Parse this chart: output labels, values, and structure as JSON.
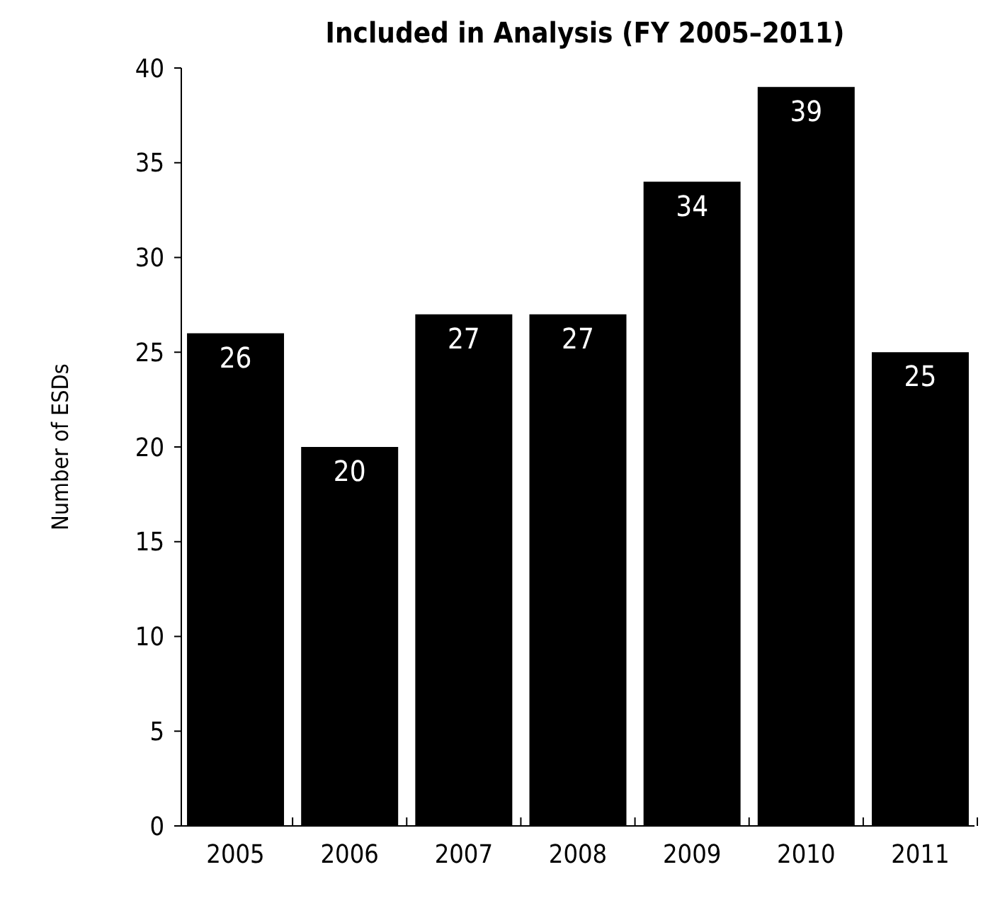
{
  "chart_data": {
    "type": "bar",
    "title": "Included in Analysis (FY 2005–2011)",
    "ylabel": "Number of ESDs",
    "categories": [
      "2005",
      "2006",
      "2007",
      "2008",
      "2009",
      "2010",
      "2011"
    ],
    "values": [
      26,
      20,
      27,
      27,
      34,
      39,
      25
    ],
    "color": "#000000",
    "ylim": [
      0,
      40
    ],
    "yticks": [
      0,
      5,
      10,
      15,
      20,
      25,
      30,
      35,
      40
    ],
    "data_labels": true
  }
}
